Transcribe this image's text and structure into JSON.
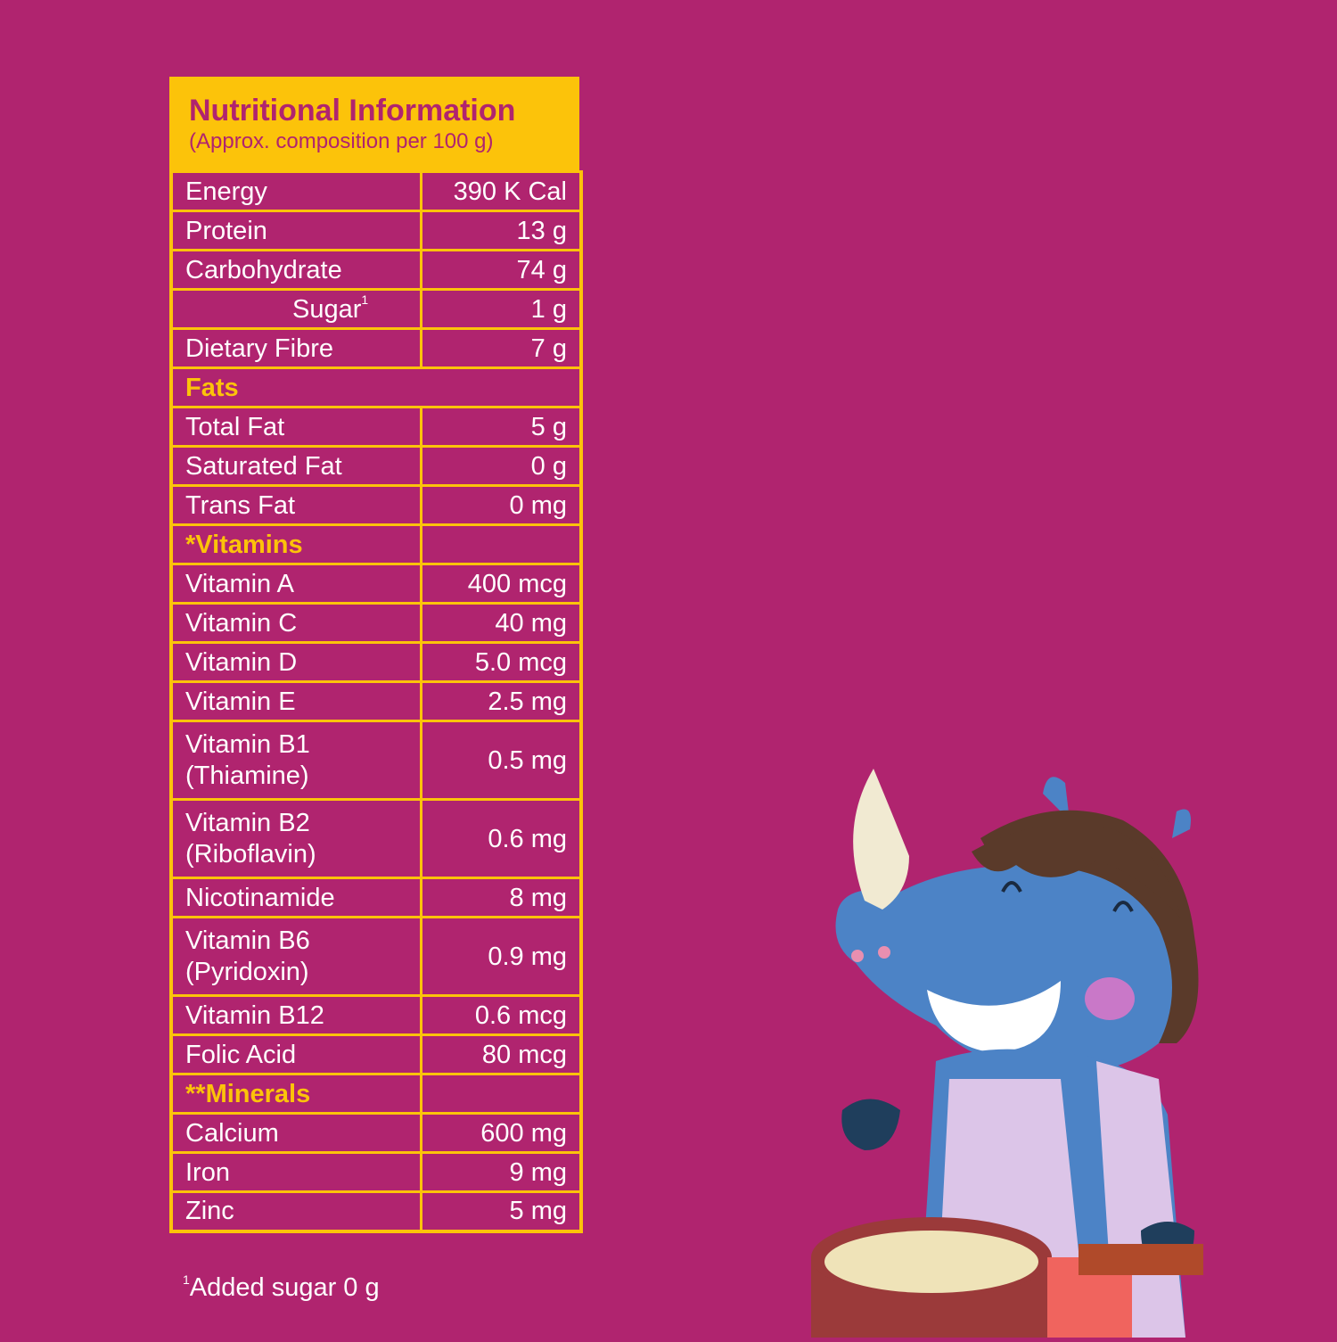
{
  "panel": {
    "title": "Nutritional Information",
    "subtitle": "(Approx. composition per 100 g)"
  },
  "rows": {
    "energy": {
      "label": "Energy",
      "value": "390 K Cal"
    },
    "protein": {
      "label": "Protein",
      "value": "13 g"
    },
    "carbohydrate": {
      "label": "Carbohydrate",
      "value": "74 g"
    },
    "sugar": {
      "label": "Sugar",
      "sup": "1",
      "value": "1 g"
    },
    "dietary_fibre": {
      "label": "Dietary Fibre",
      "value": "7 g"
    },
    "fats_header": "Fats",
    "total_fat": {
      "label": "Total Fat",
      "value": "5 g"
    },
    "saturated_fat": {
      "label": "Saturated Fat",
      "value": "0 g"
    },
    "trans_fat": {
      "label": "Trans Fat",
      "value": "0 mg"
    },
    "vitamins_header": "*Vitamins",
    "vitamin_a": {
      "label": "Vitamin A",
      "value": "400 mcg"
    },
    "vitamin_c": {
      "label": "Vitamin C",
      "value": "40 mg"
    },
    "vitamin_d": {
      "label": "Vitamin D",
      "value": "5.0 mcg"
    },
    "vitamin_e": {
      "label": "Vitamin E",
      "value": "2.5 mg"
    },
    "vitamin_b1": {
      "label": "Vitamin B1",
      "label2": "(Thiamine)",
      "value": "0.5 mg"
    },
    "vitamin_b2": {
      "label": "Vitamin B2",
      "label2": "(Riboflavin)",
      "value": "0.6 mg"
    },
    "nicotinamide": {
      "label": "Nicotinamide",
      "value": "8 mg"
    },
    "vitamin_b6": {
      "label": "Vitamin B6",
      "label2": "(Pyridoxin)",
      "value": "0.9 mg"
    },
    "vitamin_b12": {
      "label": "Vitamin B12",
      "value": "0.6 mcg"
    },
    "folic_acid": {
      "label": "Folic Acid",
      "value": "80 mcg"
    },
    "minerals_header": "**Minerals",
    "calcium": {
      "label": "Calcium",
      "value": "600 mg"
    },
    "iron": {
      "label": "Iron",
      "value": "9 mg"
    },
    "zinc": {
      "label": "Zinc",
      "value": "5 mg"
    }
  },
  "footnote": {
    "sup": "1",
    "text": "Added sugar 0 g"
  },
  "colors": {
    "background": "#b0246f",
    "accent": "#fcc30a",
    "text": "#ffffff"
  },
  "illustration": {
    "icon": "rhino-chef-illustration"
  }
}
